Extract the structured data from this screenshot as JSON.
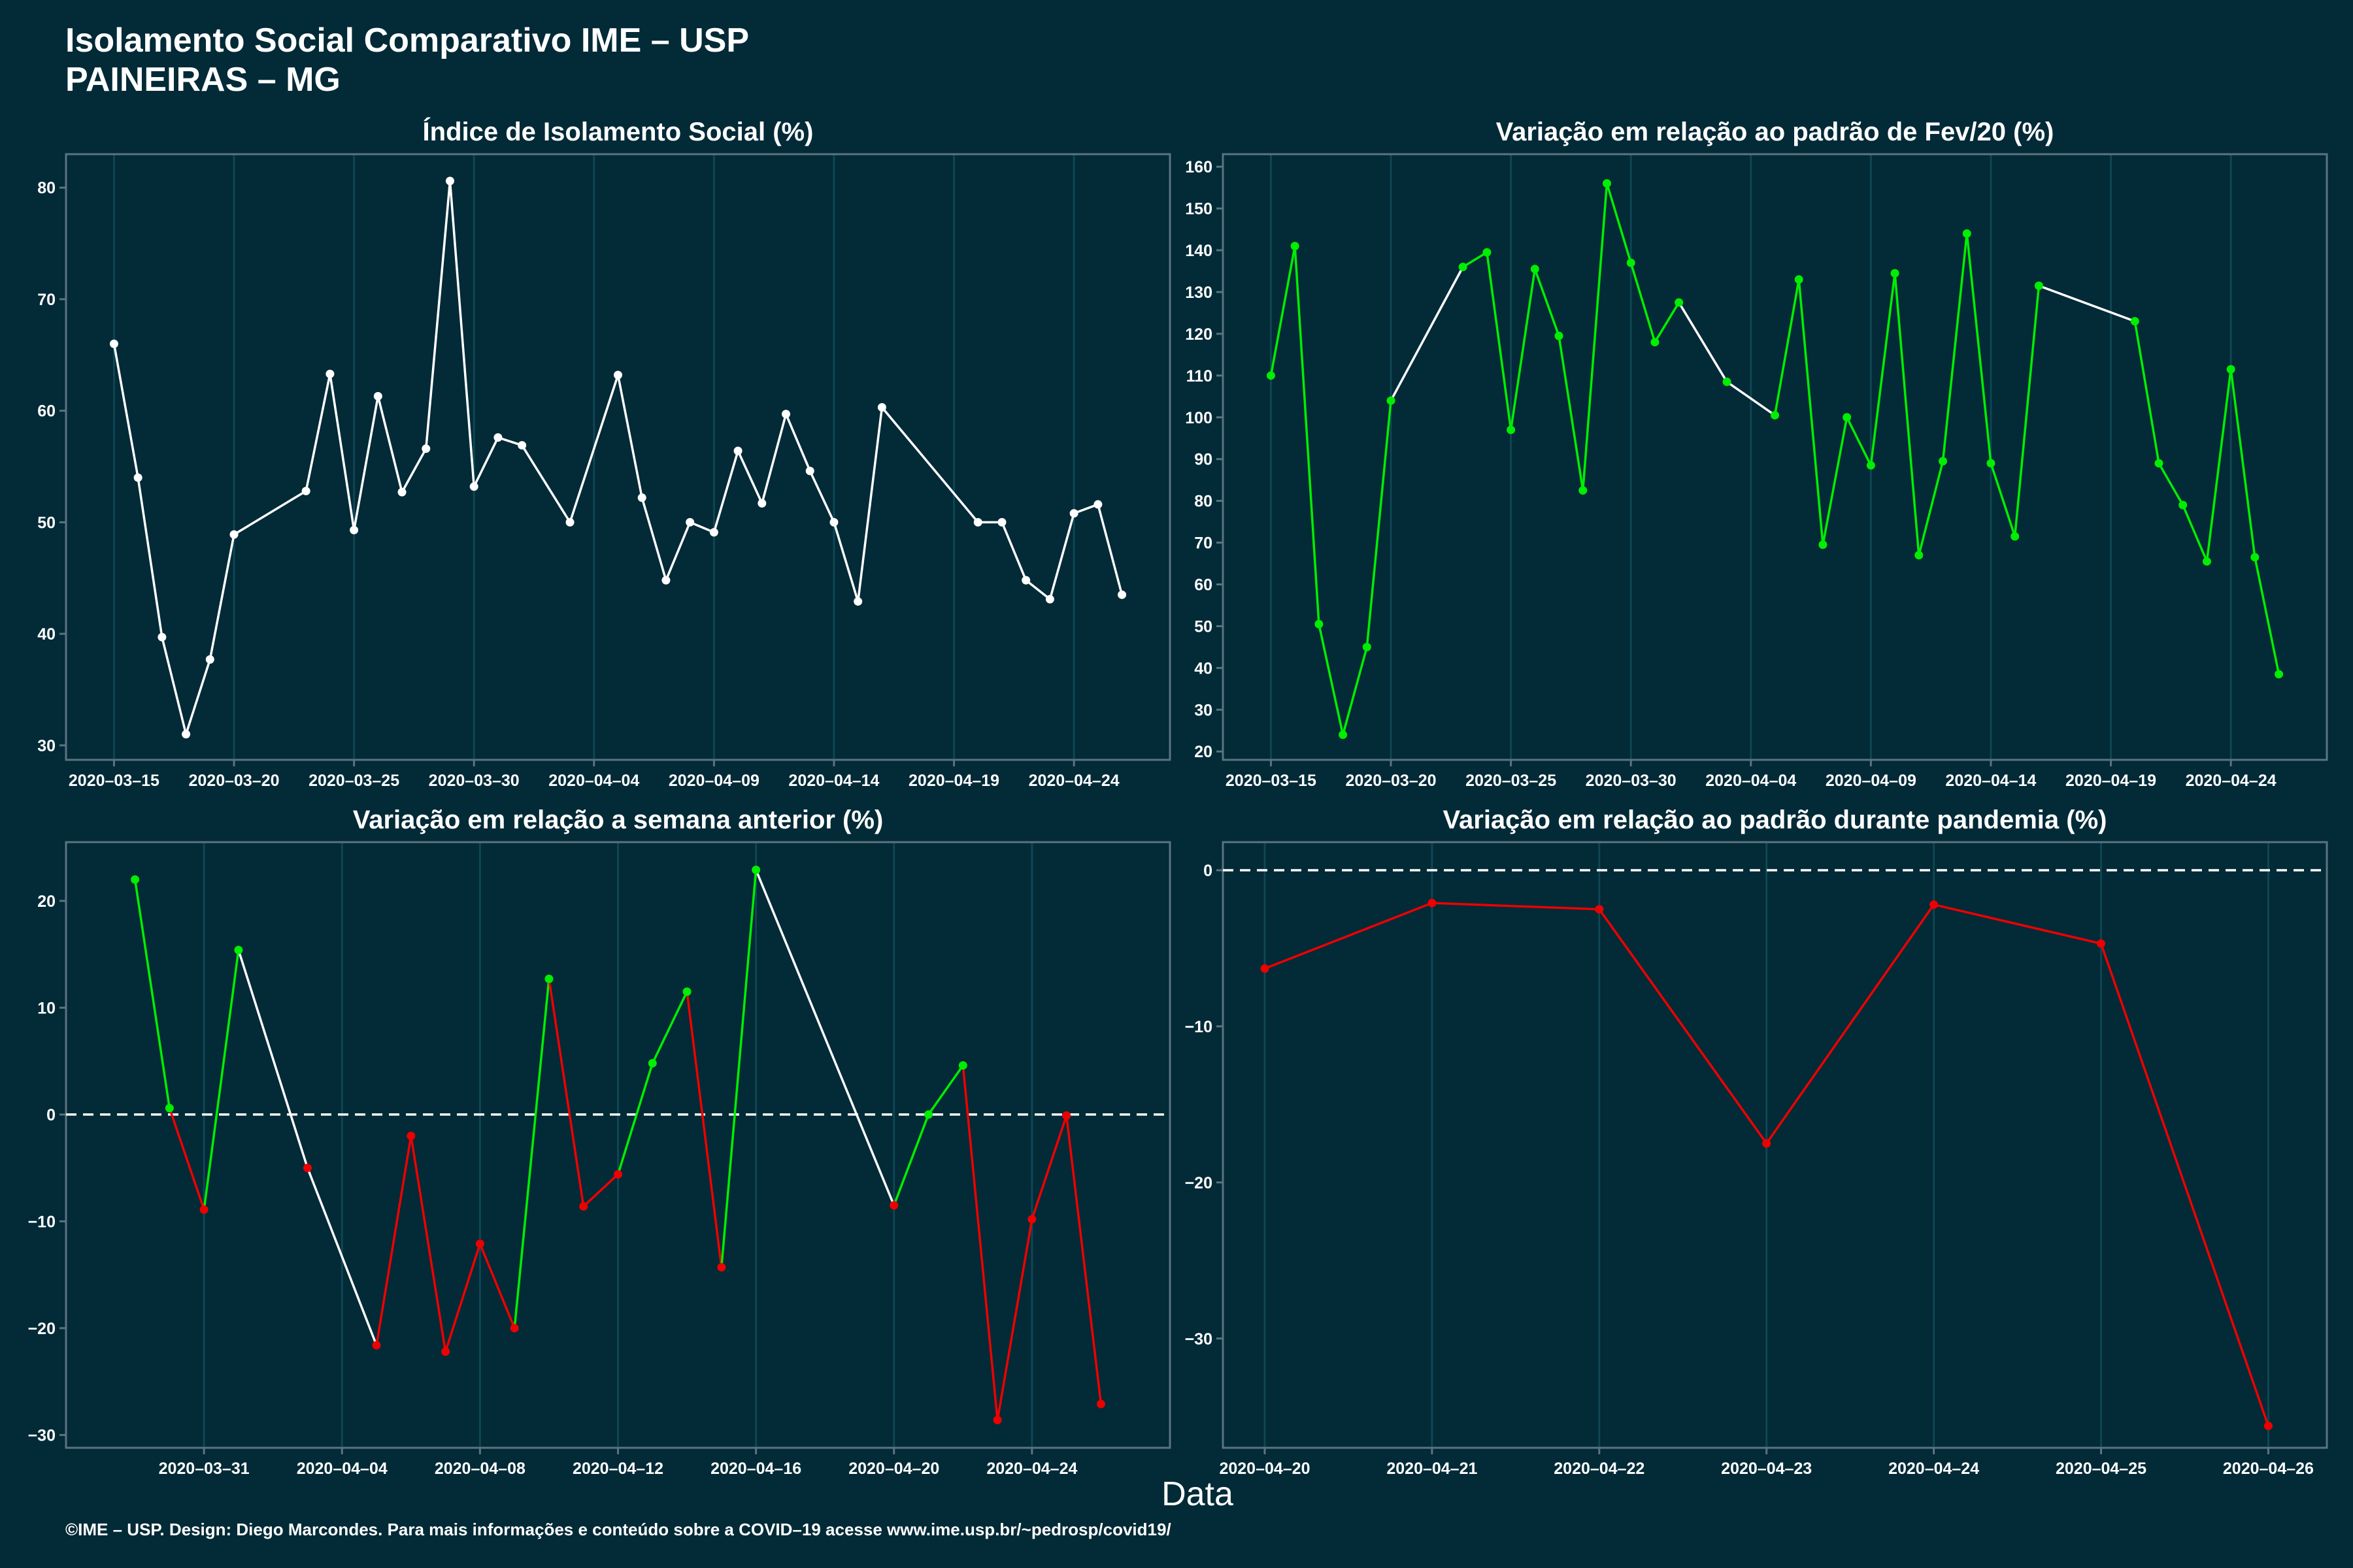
{
  "header": {
    "title_line1": "Isolamento Social Comparativo IME – USP",
    "title_line2": "PAINEIRAS – MG"
  },
  "xlabel": "Data",
  "caption": "©IME – USP. Design: Diego Marcondes. Para mais informações e conteúdo sobre a COVID–19 acesse www.ime.usp.br/~pedrosp/covid19/",
  "colors": {
    "background": "#022a37",
    "panel": "#022a37",
    "axis": "#5b7480",
    "grid": "#0f4654",
    "white": "#ffffff",
    "green": "#00ee00",
    "red": "#ee0000"
  },
  "chart_data": [
    {
      "type": "line",
      "title": "Índice de Isolamento Social (%)",
      "xlabel": "",
      "ylabel": "",
      "x_range": [
        "2020-03-13",
        "2020-04-28"
      ],
      "ylim": [
        28.7,
        83.0
      ],
      "yticks": [
        30,
        40,
        50,
        60,
        70,
        80
      ],
      "xticks": [
        "2020-03-15",
        "2020-03-20",
        "2020-03-25",
        "2020-03-30",
        "2020-04-04",
        "2020-04-09",
        "2020-04-14",
        "2020-04-19",
        "2020-04-24"
      ],
      "grid": true,
      "line_color": "white",
      "points": [
        [
          "2020-03-15",
          66.0
        ],
        [
          "2020-03-16",
          54.0
        ],
        [
          "2020-03-17",
          39.7
        ],
        [
          "2020-03-18",
          31.0
        ],
        [
          "2020-03-19",
          37.7
        ],
        [
          "2020-03-20",
          48.9
        ],
        [
          "2020-03-23",
          52.8
        ],
        [
          "2020-03-24",
          63.3
        ],
        [
          "2020-03-25",
          49.3
        ],
        [
          "2020-03-26",
          61.3
        ],
        [
          "2020-03-27",
          52.7
        ],
        [
          "2020-03-28",
          56.6
        ],
        [
          "2020-03-29",
          80.6
        ],
        [
          "2020-03-30",
          53.2
        ],
        [
          "2020-03-31",
          57.6
        ],
        [
          "2020-04-01",
          56.9
        ],
        [
          "2020-04-03",
          50.0
        ],
        [
          "2020-04-05",
          63.2
        ],
        [
          "2020-04-06",
          52.2
        ],
        [
          "2020-04-07",
          44.8
        ],
        [
          "2020-04-08",
          50.0
        ],
        [
          "2020-04-09",
          49.1
        ],
        [
          "2020-04-10",
          56.4
        ],
        [
          "2020-04-11",
          51.7
        ],
        [
          "2020-04-12",
          59.7
        ],
        [
          "2020-04-13",
          54.6
        ],
        [
          "2020-04-14",
          50.0
        ],
        [
          "2020-04-15",
          42.9
        ],
        [
          "2020-04-16",
          60.3
        ],
        [
          "2020-04-20",
          50.0
        ],
        [
          "2020-04-21",
          50.0
        ],
        [
          "2020-04-22",
          44.8
        ],
        [
          "2020-04-23",
          43.1
        ],
        [
          "2020-04-24",
          50.8
        ],
        [
          "2020-04-25",
          51.6
        ],
        [
          "2020-04-26",
          43.5
        ]
      ]
    },
    {
      "type": "line",
      "title": "Variação em relação ao padrão de Fev/20 (%)",
      "xlabel": "",
      "ylabel": "",
      "x_range": [
        "2020-03-13",
        "2020-04-28"
      ],
      "ylim": [
        18.0,
        163.0
      ],
      "yticks": [
        20,
        30,
        40,
        50,
        60,
        70,
        80,
        90,
        100,
        110,
        120,
        130,
        140,
        150,
        160
      ],
      "xticks": [
        "2020-03-15",
        "2020-03-20",
        "2020-03-25",
        "2020-03-30",
        "2020-04-04",
        "2020-04-09",
        "2020-04-14",
        "2020-04-19",
        "2020-04-24"
      ],
      "grid": true,
      "point_color": "green",
      "gap_segment_color": "white",
      "points": [
        [
          "2020-03-15",
          110
        ],
        [
          "2020-03-16",
          141
        ],
        [
          "2020-03-17",
          50.5
        ],
        [
          "2020-03-18",
          24
        ],
        [
          "2020-03-19",
          45
        ],
        [
          "2020-03-20",
          104
        ],
        [
          "2020-03-23",
          136
        ],
        [
          "2020-03-24",
          139.5
        ],
        [
          "2020-03-25",
          97
        ],
        [
          "2020-03-26",
          135.5
        ],
        [
          "2020-03-27",
          119.5
        ],
        [
          "2020-03-28",
          82.5
        ],
        [
          "2020-03-29",
          156
        ],
        [
          "2020-03-30",
          137
        ],
        [
          "2020-03-31",
          118
        ],
        [
          "2020-04-01",
          127.5
        ],
        [
          "2020-04-03",
          108.5
        ],
        [
          "2020-04-05",
          100.5
        ],
        [
          "2020-04-06",
          133
        ],
        [
          "2020-04-07",
          69.5
        ],
        [
          "2020-04-08",
          100
        ],
        [
          "2020-04-09",
          88.5
        ],
        [
          "2020-04-10",
          134.5
        ],
        [
          "2020-04-11",
          67
        ],
        [
          "2020-04-12",
          89.5
        ],
        [
          "2020-04-13",
          144
        ],
        [
          "2020-04-14",
          89
        ],
        [
          "2020-04-15",
          71.5
        ],
        [
          "2020-04-16",
          131.5
        ],
        [
          "2020-04-20",
          123
        ],
        [
          "2020-04-21",
          89
        ],
        [
          "2020-04-22",
          79
        ],
        [
          "2020-04-23",
          65.5
        ],
        [
          "2020-04-24",
          111.5
        ],
        [
          "2020-04-25",
          66.5
        ],
        [
          "2020-04-26",
          38.5
        ]
      ]
    },
    {
      "type": "line",
      "title": "Variação em relação a semana anterior (%)",
      "xlabel": "",
      "ylabel": "",
      "x_range": [
        "2020-03-27",
        "2020-04-28"
      ],
      "ylim": [
        -31.2,
        25.5
      ],
      "yticks": [
        -30,
        -20,
        -10,
        0,
        10,
        20
      ],
      "xticks": [
        "2020-03-31",
        "2020-04-04",
        "2020-04-08",
        "2020-04-12",
        "2020-04-16",
        "2020-04-20",
        "2020-04-24"
      ],
      "grid": true,
      "reference_line": 0,
      "positive_color": "green",
      "negative_color": "red",
      "gap_segment_color": "white",
      "points": [
        [
          "2020-03-29",
          22.0
        ],
        [
          "2020-03-30",
          0.6
        ],
        [
          "2020-03-31",
          -8.9
        ],
        [
          "2020-04-01",
          15.4
        ],
        [
          "2020-04-03",
          -5.0
        ],
        [
          "2020-04-05",
          -21.6
        ],
        [
          "2020-04-06",
          -2.0
        ],
        [
          "2020-04-07",
          -22.2
        ],
        [
          "2020-04-08",
          -12.1
        ],
        [
          "2020-04-09",
          -20.0
        ],
        [
          "2020-04-10",
          12.7
        ],
        [
          "2020-04-11",
          -8.6
        ],
        [
          "2020-04-12",
          -5.6
        ],
        [
          "2020-04-13",
          4.8
        ],
        [
          "2020-04-14",
          11.5
        ],
        [
          "2020-04-15",
          -14.3
        ],
        [
          "2020-04-16",
          22.9
        ],
        [
          "2020-04-20",
          -8.5
        ],
        [
          "2020-04-21",
          0.0
        ],
        [
          "2020-04-22",
          4.6
        ],
        [
          "2020-04-23",
          -28.6
        ],
        [
          "2020-04-24",
          -9.8
        ],
        [
          "2020-04-25",
          -0.1
        ],
        [
          "2020-04-26",
          -27.1
        ]
      ]
    },
    {
      "type": "line",
      "title": "Variação em relação ao padrão durante pandemia (%)",
      "xlabel": "",
      "ylabel": "",
      "x_range": [
        "2020-04-19.75",
        "2020-04-26.35"
      ],
      "ylim": [
        -37.0,
        1.8
      ],
      "yticks": [
        -30,
        -20,
        -10,
        0
      ],
      "xticks": [
        "2020-04-20",
        "2020-04-21",
        "2020-04-22",
        "2020-04-23",
        "2020-04-24",
        "2020-04-25",
        "2020-04-26"
      ],
      "grid": true,
      "reference_line": 0,
      "line_color": "red",
      "points": [
        [
          "2020-04-20",
          -6.3
        ],
        [
          "2020-04-21",
          -2.1
        ],
        [
          "2020-04-22",
          -2.5
        ],
        [
          "2020-04-23",
          -17.5
        ],
        [
          "2020-04-24",
          -2.2
        ],
        [
          "2020-04-25",
          -4.7
        ],
        [
          "2020-04-26",
          -35.6
        ]
      ]
    }
  ]
}
